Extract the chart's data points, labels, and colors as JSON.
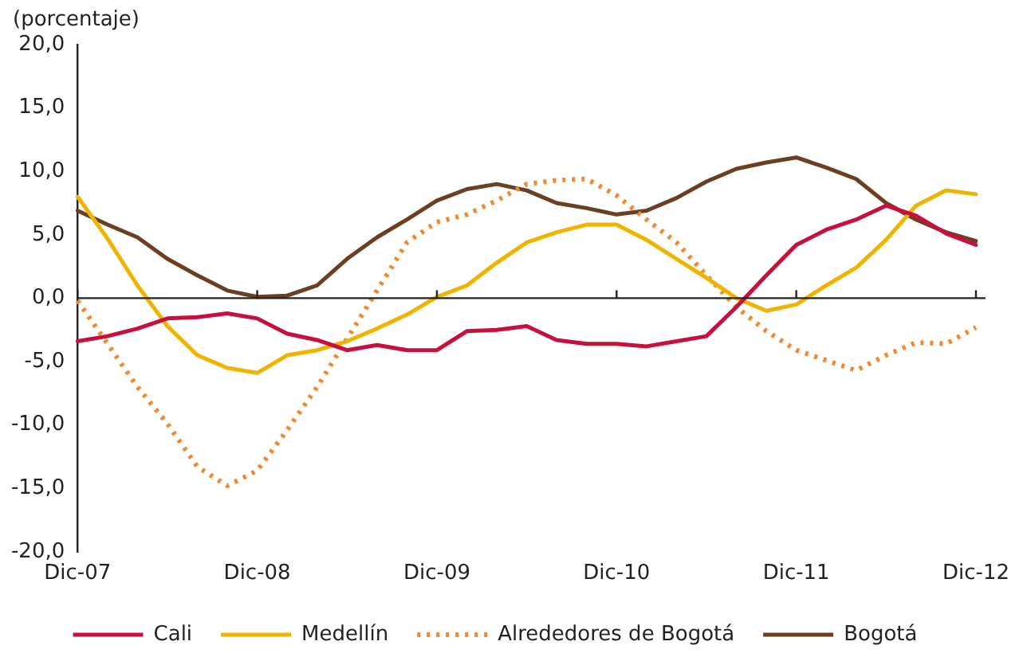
{
  "chart_data": {
    "type": "line",
    "ylabel": "(porcentaje)",
    "categories": [
      "Dic-07",
      null,
      null,
      null,
      null,
      null,
      "Dic-08",
      null,
      null,
      null,
      null,
      null,
      "Dic-09",
      null,
      null,
      null,
      null,
      null,
      "Dic-10",
      null,
      null,
      null,
      null,
      null,
      "Dic-11",
      null,
      null,
      null,
      null,
      null,
      "Dic-12"
    ],
    "series": [
      {
        "name": "Cali",
        "color": "#c8103e",
        "line_style": "solid",
        "values": [
          -3.4,
          -3.0,
          -2.4,
          -1.6,
          -1.5,
          -1.2,
          -1.6,
          -2.8,
          -3.3,
          -4.1,
          -3.7,
          -4.1,
          -4.1,
          -2.6,
          -2.5,
          -2.2,
          -3.3,
          -3.6,
          -3.6,
          -3.8,
          -3.4,
          -3.0,
          -0.7,
          1.8,
          4.2,
          5.4,
          6.2,
          7.3,
          6.5,
          5.1,
          4.2
        ]
      },
      {
        "name": "Medellín",
        "color": "#f0b400",
        "line_style": "solid",
        "values": [
          8.0,
          4.7,
          1.0,
          -2.2,
          -4.5,
          -5.5,
          -5.9,
          -4.5,
          -4.1,
          -3.4,
          -2.4,
          -1.3,
          0.1,
          1.0,
          2.8,
          4.4,
          5.2,
          5.8,
          5.8,
          4.6,
          3.1,
          1.6,
          0.0,
          -1.0,
          -0.5,
          1.0,
          2.4,
          4.6,
          7.3,
          8.5,
          8.2
        ]
      },
      {
        "name": "Alrededores de Bogotá",
        "color": "#f08a30",
        "line_style": "dotted",
        "values": [
          -0.2,
          -3.6,
          -7.0,
          -9.9,
          -13.3,
          -14.8,
          -13.6,
          -10.4,
          -7.0,
          -3.2,
          0.6,
          4.4,
          6.0,
          6.6,
          7.7,
          9.0,
          9.3,
          9.4,
          8.1,
          6.2,
          4.4,
          1.8,
          -0.7,
          -2.6,
          -4.1,
          -4.9,
          -5.7,
          -4.5,
          -3.5,
          -3.6,
          -2.3
        ]
      },
      {
        "name": "Bogotá",
        "color": "#6b3f22",
        "line_style": "solid",
        "values": [
          6.9,
          5.8,
          4.8,
          3.1,
          1.8,
          0.6,
          0.1,
          0.2,
          1.0,
          3.1,
          4.8,
          6.2,
          7.7,
          8.6,
          9.0,
          8.5,
          7.5,
          7.1,
          6.6,
          6.9,
          7.9,
          9.2,
          10.2,
          10.7,
          11.1,
          10.3,
          9.4,
          7.5,
          6.2,
          5.2,
          4.5
        ]
      }
    ],
    "ylim": [
      -20,
      20
    ],
    "yticks": [
      {
        "value": -20,
        "label": "-20,0"
      },
      {
        "value": -15,
        "label": "-15,0"
      },
      {
        "value": -10,
        "label": "-10,0"
      },
      {
        "value": -5,
        "label": "-5,0"
      },
      {
        "value": 0,
        "label": "0,0"
      },
      {
        "value": 5,
        "label": "5,0"
      },
      {
        "value": 10,
        "label": "10,0"
      },
      {
        "value": 15,
        "label": "15,0"
      },
      {
        "value": 20,
        "label": "20,0"
      }
    ],
    "ref_lines": [
      {
        "axis": "y",
        "value": 0
      }
    ],
    "grid": false,
    "legend": "bottom",
    "marker": "none"
  }
}
